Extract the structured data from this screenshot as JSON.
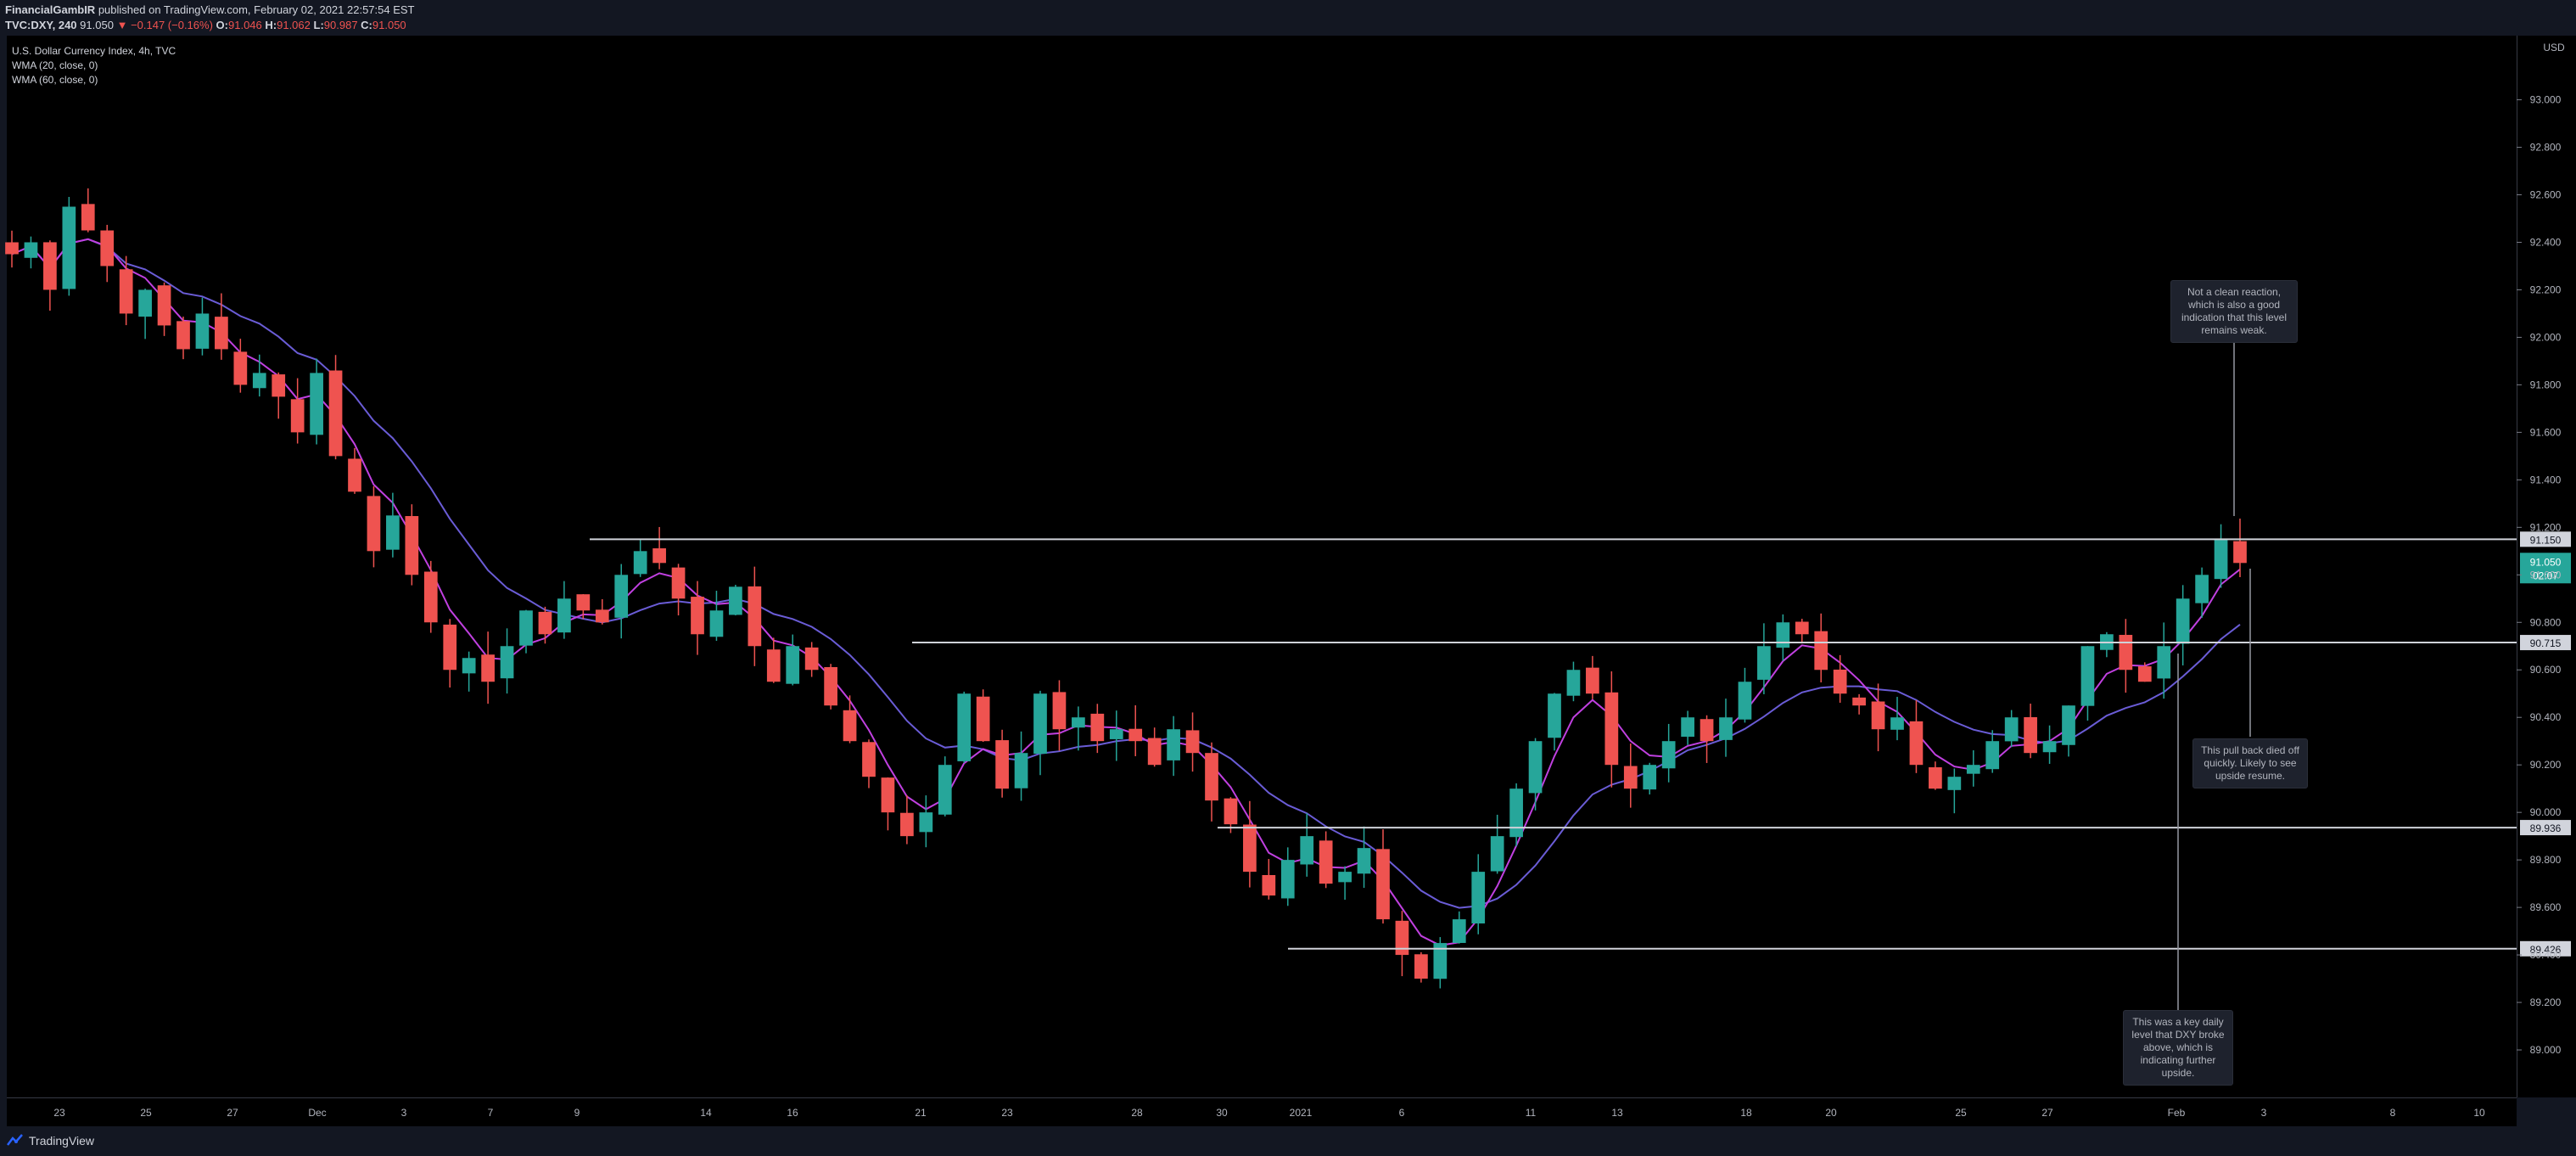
{
  "header": {
    "author": "FinancialGambIR",
    "published_text": "published on TradingView.com, February 02, 2021 22:57:54 EST",
    "symbol": "TVC:DXY, 240",
    "price": "91.050",
    "change": "−0.147 (−0.16%)",
    "open_label": "O:",
    "open": "91.046",
    "high_label": "H:",
    "high": "91.062",
    "low_label": "L:",
    "low": "90.987",
    "close_label": "C:",
    "close": "91.050"
  },
  "legend": {
    "title": "U.S. Dollar Currency Index, 4h, TVC",
    "wma20": "WMA (20, close, 0)",
    "wma60": "WMA (60, close, 0)"
  },
  "footer": {
    "brand": "TradingView"
  },
  "colors": {
    "up": "#26a69a",
    "down": "#ef5350",
    "wma20": "#c040e0",
    "wma60": "#6a5cd6",
    "level_line": "#cfd2d9",
    "background": "#000000",
    "last_price_bg": "#26a69a"
  },
  "chart_data": {
    "type": "candlestick",
    "currency": "USD",
    "ylim": [
      88.8,
      93.27
    ],
    "y_ticks": [
      "93.000",
      "92.800",
      "92.600",
      "92.400",
      "92.200",
      "92.000",
      "91.800",
      "91.600",
      "91.400",
      "91.200",
      "91.000",
      "90.800",
      "90.600",
      "90.400",
      "90.200",
      "90.000",
      "89.800",
      "89.600",
      "89.400",
      "89.200",
      "89.000"
    ],
    "x_ticks": [
      "23",
      "25",
      "27",
      "Dec",
      "3",
      "7",
      "9",
      "14",
      "16",
      "21",
      "23",
      "28",
      "30",
      "2021",
      "6",
      "11",
      "13",
      "18",
      "20",
      "25",
      "27",
      "Feb",
      "3",
      "8",
      "10"
    ],
    "horizontal_levels": [
      {
        "value": 91.15,
        "label": "91.150"
      },
      {
        "value": 90.715,
        "label": "90.715"
      },
      {
        "value": 89.936,
        "label": "89.936"
      },
      {
        "value": 89.426,
        "label": "89.426"
      }
    ],
    "last_price": {
      "value": 91.05,
      "label": "91.050",
      "countdown": "02:07"
    },
    "annotations": [
      "Not a clean reaction, which is also a good indication that this level remains weak.",
      "This pull back died off quickly. Likely to see upside resume.",
      "This was a key daily level that DXY broke above, which is indicating further upside."
    ],
    "close_path": [
      92.35,
      92.4,
      92.2,
      92.55,
      92.45,
      92.3,
      92.1,
      92.2,
      92.05,
      91.95,
      92.1,
      91.95,
      91.8,
      91.85,
      91.75,
      91.6,
      91.85,
      91.5,
      91.35,
      91.1,
      91.25,
      91.0,
      90.8,
      90.6,
      90.65,
      90.55,
      90.7,
      90.85,
      90.75,
      90.9,
      90.85,
      90.8,
      91.0,
      91.1,
      91.05,
      90.9,
      90.75,
      90.85,
      90.95,
      90.7,
      90.55,
      90.7,
      90.6,
      90.45,
      90.3,
      90.15,
      90.0,
      89.9,
      90.0,
      90.2,
      90.5,
      90.3,
      90.1,
      90.25,
      90.5,
      90.35,
      90.4,
      90.3,
      90.35,
      90.3,
      90.2,
      90.35,
      90.25,
      90.05,
      89.95,
      89.75,
      89.65,
      89.8,
      89.9,
      89.7,
      89.75,
      89.85,
      89.55,
      89.4,
      89.3,
      89.45,
      89.55,
      89.75,
      89.9,
      90.1,
      90.3,
      90.5,
      90.6,
      90.5,
      90.2,
      90.1,
      90.2,
      90.3,
      90.4,
      90.3,
      90.4,
      90.55,
      90.7,
      90.8,
      90.75,
      90.6,
      90.5,
      90.45,
      90.35,
      90.4,
      90.2,
      90.1,
      90.15,
      90.2,
      90.3,
      90.4,
      90.25,
      90.3,
      90.45,
      90.7,
      90.75,
      90.6,
      90.55,
      90.7,
      90.9,
      91.0,
      91.15,
      91.05
    ]
  }
}
